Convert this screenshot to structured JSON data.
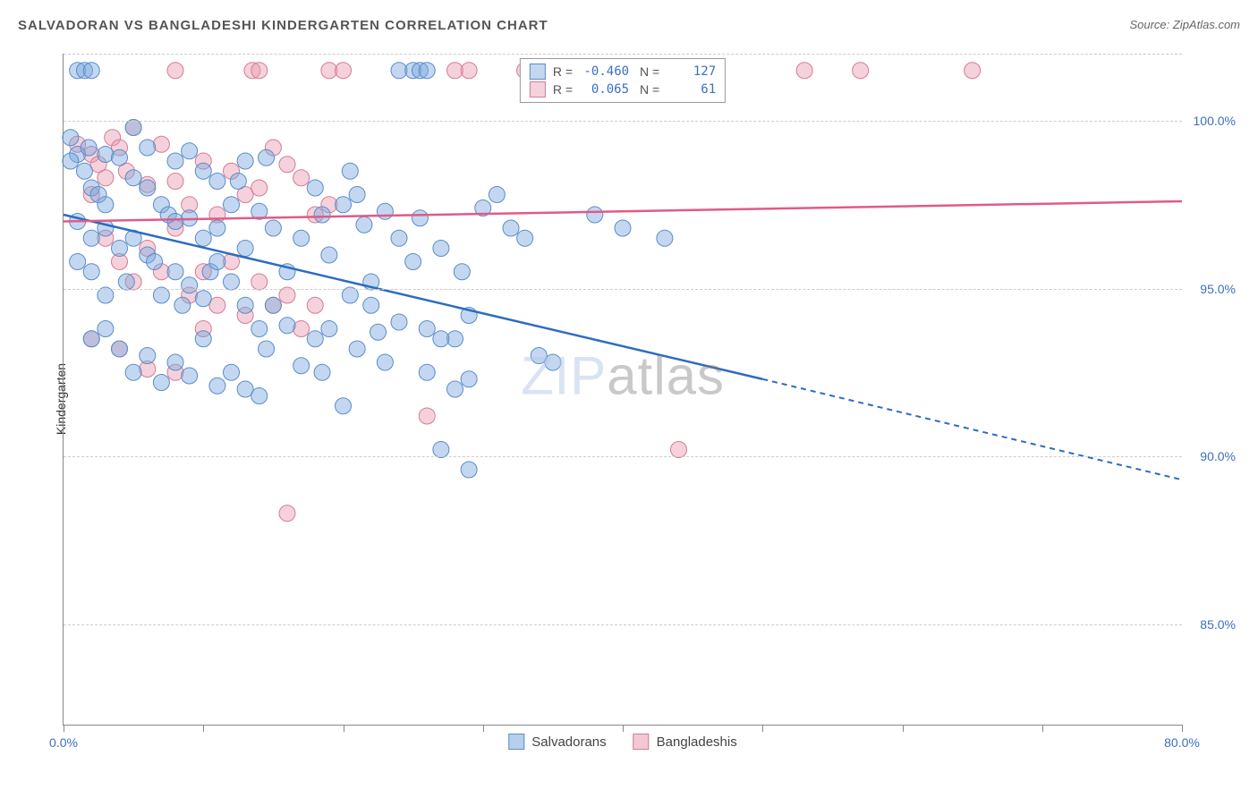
{
  "chart": {
    "title": "SALVADORAN VS BANGLADESHI KINDERGARTEN CORRELATION CHART",
    "source": "Source: ZipAtlas.com",
    "type": "scatter",
    "y_label": "Kindergarten",
    "watermark_a": "ZIP",
    "watermark_b": "atlas",
    "xlim": [
      0,
      80
    ],
    "ylim": [
      82,
      102
    ],
    "x_ticks_visible": {
      "labels": [
        "0.0%",
        "80.0%"
      ],
      "positions": [
        0,
        80
      ]
    },
    "x_minor_ticks": [
      0,
      10,
      20,
      30,
      40,
      50,
      60,
      70,
      80
    ],
    "y_ticks": [
      {
        "label": "100.0%",
        "value": 100
      },
      {
        "label": "95.0%",
        "value": 95
      },
      {
        "label": "90.0%",
        "value": 90
      },
      {
        "label": "85.0%",
        "value": 85
      }
    ],
    "grid_color": "#cccccc",
    "background_color": "#ffffff",
    "series": [
      {
        "name": "Salvadorans",
        "color": "#7aa8de",
        "fill": "rgba(122,168,222,0.45)",
        "stroke": "#5b8cc9",
        "line_color": "#2c6cc0",
        "r_value": "-0.460",
        "n_value": "127",
        "trend": {
          "x1": 0,
          "y1": 97.2,
          "x2": 50,
          "y2": 92.3,
          "x2_ext": 80,
          "y2_ext": 89.3
        },
        "marker_radius": 9,
        "points": [
          [
            1,
            101.5
          ],
          [
            1.5,
            101.5
          ],
          [
            2,
            101.5
          ],
          [
            24,
            101.5
          ],
          [
            25,
            101.5
          ],
          [
            25.5,
            101.5
          ],
          [
            26,
            101.5
          ],
          [
            0.5,
            99.5
          ],
          [
            1,
            99
          ],
          [
            1.5,
            98.5
          ],
          [
            2,
            98
          ],
          [
            2.5,
            97.8
          ],
          [
            3,
            97.5
          ],
          [
            1,
            97
          ],
          [
            0.5,
            98.8
          ],
          [
            1.8,
            99.2
          ],
          [
            3,
            99
          ],
          [
            4,
            98.9
          ],
          [
            5,
            98.3
          ],
          [
            6,
            98
          ],
          [
            7,
            97.5
          ],
          [
            7.5,
            97.2
          ],
          [
            8,
            97
          ],
          [
            9,
            97.1
          ],
          [
            10,
            96.5
          ],
          [
            11,
            96.8
          ],
          [
            12,
            97.5
          ],
          [
            12.5,
            98.2
          ],
          [
            13,
            96.2
          ],
          [
            14,
            97.3
          ],
          [
            14.5,
            98.9
          ],
          [
            15,
            96.8
          ],
          [
            16,
            95.5
          ],
          [
            17,
            96.5
          ],
          [
            18,
            98
          ],
          [
            18.5,
            97.2
          ],
          [
            19,
            96
          ],
          [
            20,
            97.5
          ],
          [
            20.5,
            98.5
          ],
          [
            21,
            97.8
          ],
          [
            21.5,
            96.9
          ],
          [
            22,
            95.2
          ],
          [
            23,
            97.3
          ],
          [
            24,
            96.5
          ],
          [
            25,
            95.8
          ],
          [
            25.5,
            97.1
          ],
          [
            26,
            93.8
          ],
          [
            27,
            96.2
          ],
          [
            28,
            93.5
          ],
          [
            29,
            94.2
          ],
          [
            30,
            97.4
          ],
          [
            31,
            97.8
          ],
          [
            32,
            96.8
          ],
          [
            33,
            96.5
          ],
          [
            34,
            93
          ],
          [
            35,
            92.8
          ],
          [
            2,
            96.5
          ],
          [
            3,
            96.8
          ],
          [
            4,
            96.2
          ],
          [
            4.5,
            95.2
          ],
          [
            5,
            96.5
          ],
          [
            6,
            96
          ],
          [
            6.5,
            95.8
          ],
          [
            7,
            94.8
          ],
          [
            8,
            95.5
          ],
          [
            8.5,
            94.5
          ],
          [
            9,
            95.1
          ],
          [
            10,
            94.7
          ],
          [
            10.5,
            95.5
          ],
          [
            11,
            95.8
          ],
          [
            12,
            95.2
          ],
          [
            13,
            94.5
          ],
          [
            14,
            93.8
          ],
          [
            14.5,
            93.2
          ],
          [
            15,
            94.5
          ],
          [
            16,
            93.9
          ],
          [
            17,
            92.7
          ],
          [
            18,
            93.5
          ],
          [
            18.5,
            92.5
          ],
          [
            19,
            93.8
          ],
          [
            20,
            91.5
          ],
          [
            20.5,
            94.8
          ],
          [
            21,
            93.2
          ],
          [
            22,
            94.5
          ],
          [
            22.5,
            93.7
          ],
          [
            23,
            92.8
          ],
          [
            24,
            94
          ],
          [
            26,
            92.5
          ],
          [
            27,
            93.5
          ],
          [
            28,
            92
          ],
          [
            28.5,
            95.5
          ],
          [
            29,
            92.3
          ],
          [
            27,
            90.2
          ],
          [
            29,
            89.6
          ],
          [
            1,
            95.8
          ],
          [
            2,
            95.5
          ],
          [
            3,
            94.8
          ],
          [
            2,
            93.5
          ],
          [
            3,
            93.8
          ],
          [
            4,
            93.2
          ],
          [
            5,
            92.5
          ],
          [
            6,
            93
          ],
          [
            7,
            92.2
          ],
          [
            8,
            92.8
          ],
          [
            9,
            92.4
          ],
          [
            10,
            93.5
          ],
          [
            11,
            92.1
          ],
          [
            12,
            92.5
          ],
          [
            13,
            92
          ],
          [
            14,
            91.8
          ],
          [
            5,
            99.8
          ],
          [
            6,
            99.2
          ],
          [
            8,
            98.8
          ],
          [
            9,
            99.1
          ],
          [
            10,
            98.5
          ],
          [
            11,
            98.2
          ],
          [
            13,
            98.8
          ],
          [
            38,
            97.2
          ],
          [
            40,
            96.8
          ],
          [
            43,
            96.5
          ]
        ]
      },
      {
        "name": "Bangladeshis",
        "color": "#e89bb0",
        "fill": "rgba(232,155,176,0.45)",
        "stroke": "#d67a95",
        "line_color": "#e15a88",
        "r_value": "0.065",
        "n_value": "61",
        "trend": {
          "x1": 0,
          "y1": 97.0,
          "x2": 80,
          "y2": 97.6
        },
        "marker_radius": 9,
        "points": [
          [
            8,
            101.5
          ],
          [
            13.5,
            101.5
          ],
          [
            14,
            101.5
          ],
          [
            19,
            101.5
          ],
          [
            20,
            101.5
          ],
          [
            28,
            101.5
          ],
          [
            29,
            101.5
          ],
          [
            33,
            101.5
          ],
          [
            34,
            101.5
          ],
          [
            53,
            101.5
          ],
          [
            57,
            101.5
          ],
          [
            65,
            101.5
          ],
          [
            1,
            99.3
          ],
          [
            2,
            99
          ],
          [
            2.5,
            98.7
          ],
          [
            3,
            98.3
          ],
          [
            3.5,
            99.5
          ],
          [
            4,
            99.2
          ],
          [
            4.5,
            98.5
          ],
          [
            5,
            99.8
          ],
          [
            6,
            98.1
          ],
          [
            7,
            99.3
          ],
          [
            8,
            98.2
          ],
          [
            9,
            97.5
          ],
          [
            10,
            98.8
          ],
          [
            11,
            97.2
          ],
          [
            12,
            98.5
          ],
          [
            13,
            97.8
          ],
          [
            14,
            98
          ],
          [
            15,
            99.2
          ],
          [
            16,
            98.7
          ],
          [
            17,
            98.3
          ],
          [
            18,
            97.2
          ],
          [
            19,
            97.5
          ],
          [
            2,
            97.8
          ],
          [
            3,
            96.5
          ],
          [
            4,
            95.8
          ],
          [
            5,
            95.2
          ],
          [
            6,
            96.2
          ],
          [
            7,
            95.5
          ],
          [
            8,
            96.8
          ],
          [
            9,
            94.8
          ],
          [
            10,
            95.5
          ],
          [
            11,
            94.5
          ],
          [
            12,
            95.8
          ],
          [
            13,
            94.2
          ],
          [
            14,
            95.2
          ],
          [
            15,
            94.5
          ],
          [
            16,
            94.8
          ],
          [
            17,
            93.8
          ],
          [
            18,
            94.5
          ],
          [
            2,
            93.5
          ],
          [
            4,
            93.2
          ],
          [
            8,
            92.5
          ],
          [
            10,
            93.8
          ],
          [
            6,
            92.6
          ],
          [
            16,
            88.3
          ],
          [
            26,
            91.2
          ],
          [
            44,
            90.2
          ]
        ]
      }
    ],
    "stats_legend_border": "#888888",
    "bottom_legend": [
      {
        "label": "Salvadorans",
        "fill": "rgba(122,168,222,0.55)",
        "border": "#5b8cc9"
      },
      {
        "label": "Bangladeshis",
        "fill": "rgba(232,155,176,0.55)",
        "border": "#d67a95"
      }
    ]
  }
}
